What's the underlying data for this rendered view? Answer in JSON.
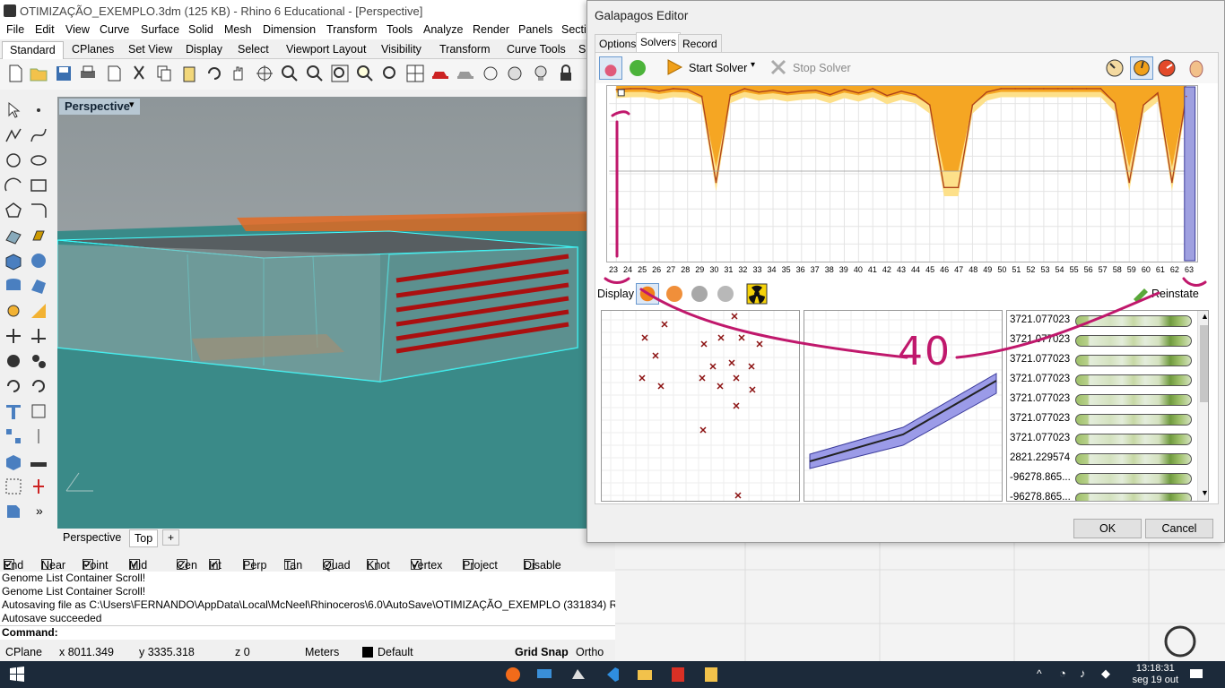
{
  "window": {
    "title": "OTIMIZAÇÃO_EXEMPLO.3dm (125 KB) - Rhino 6 Educational - [Perspective]"
  },
  "menu": [
    "File",
    "Edit",
    "View",
    "Curve",
    "Surface",
    "Solid",
    "Mesh",
    "Dimension",
    "Transform",
    "Tools",
    "Analyze",
    "Render",
    "Panels",
    "Sectio"
  ],
  "toolbar_tabs": [
    "Standard",
    "CPlanes",
    "Set View",
    "Display",
    "Select",
    "Viewport Layout",
    "Visibility",
    "Transform",
    "Curve Tools",
    "S"
  ],
  "viewport": {
    "title": "Perspective",
    "tabs": [
      "Perspective",
      "Top"
    ],
    "add_icon": "+"
  },
  "osnaps": [
    {
      "label": "End",
      "checked": true
    },
    {
      "label": "Near",
      "checked": false
    },
    {
      "label": "Point",
      "checked": true
    },
    {
      "label": "Mid",
      "checked": true
    },
    {
      "label": "Cen",
      "checked": true
    },
    {
      "label": "Int",
      "checked": true
    },
    {
      "label": "Perp",
      "checked": false
    },
    {
      "label": "Tan",
      "checked": false
    },
    {
      "label": "Quad",
      "checked": true
    },
    {
      "label": "Knot",
      "checked": false
    },
    {
      "label": "Vertex",
      "checked": true
    },
    {
      "label": "Project",
      "checked": false
    },
    {
      "label": "Disable",
      "checked": false
    }
  ],
  "command_history": [
    "Genome List Container Scroll!",
    "Genome List Container Scroll!",
    "Autosaving file as C:\\Users\\FERNANDO\\AppData\\Local\\McNeel\\Rhinoceros\\6.0\\AutoSave\\OTIMIZAÇÃO_EXEMPLO (331834) Rhin",
    "Autosave succeeded"
  ],
  "command_prompt": "Command:",
  "status": {
    "cplane": "CPlane",
    "x": "x 8011.349",
    "y": "y 3335.318",
    "z": "z 0",
    "units": "Meters",
    "layer": "Default",
    "grid_snap": "Grid Snap",
    "ortho": "Ortho"
  },
  "galapagos": {
    "title": "Galapagos Editor",
    "tabs": [
      "Options",
      "Solvers",
      "Record"
    ],
    "active_tab": "Solvers",
    "start_label": "Start Solver",
    "stop_label": "Stop Solver",
    "display_label": "Display",
    "reinstate_label": "Reinstate",
    "ok_label": "OK",
    "cancel_label": "Cancel",
    "annotation": "40",
    "genomes": [
      "3721.077023",
      "3721.077023",
      "3721.077023",
      "3721.077023",
      "3721.077023",
      "3721.077023",
      "3721.077023",
      "2821.229574",
      "-96278.865...",
      "-96278.865..."
    ]
  },
  "chart_data": {
    "type": "area",
    "x": [
      23,
      24,
      25,
      26,
      27,
      28,
      29,
      30,
      31,
      32,
      33,
      34,
      35,
      36,
      37,
      38,
      39,
      40,
      41,
      42,
      43,
      44,
      45,
      46,
      47,
      48,
      49,
      50,
      51,
      52,
      53,
      54,
      55,
      56,
      57,
      58,
      59,
      60,
      61,
      62,
      63
    ],
    "series": [
      {
        "values": [
          2,
          1,
          1,
          4,
          1,
          2,
          10,
          110,
          8,
          1,
          5,
          3,
          6,
          4,
          3,
          8,
          2,
          6,
          1,
          9,
          4,
          8,
          20,
          116,
          116,
          20,
          5,
          1,
          1,
          1,
          1,
          1,
          1,
          1,
          1,
          18,
          110,
          20,
          6,
          110,
          10
        ]
      }
    ],
    "ylim": [
      0,
      200
    ],
    "grid": true
  },
  "taskbar": {
    "time": "13:18:31",
    "date": "seg 19 out"
  },
  "colors": {
    "accent": "#c0186c",
    "fitness": "#f5a623",
    "selection": "#3c70d0"
  }
}
